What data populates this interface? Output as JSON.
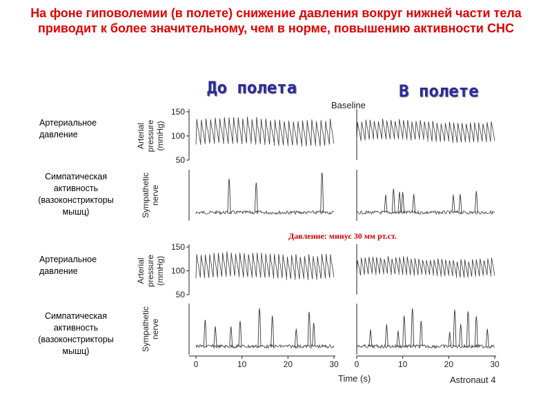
{
  "title": "На фоне гиповолемии (в полете) снижение давления вокруг нижней части тела приводит к более значительному, чем в норме, повышению активности СНС",
  "columns": {
    "before": "До полета",
    "during": "В полете"
  },
  "row_labels": {
    "pressure_top": "Артериальное давление",
    "sympathetic_top": "Симпатическая активность (вазоконстрикторы мышц)",
    "pressure_bottom": "Артериальное давление",
    "sympathetic_bottom": "Симпатическая активность (вазоконстрикторы мышц)"
  },
  "pressure_note": "Давление: минус 30 мм рт.ст.",
  "chart_data": {
    "type": "line",
    "condition_labels": [
      "Baseline",
      "Давление: минус 30 мм рт.ст."
    ],
    "subject": "Astronaut 4",
    "xlabel": "Time (s)",
    "x_ticks": [
      "0",
      "10",
      "20",
      "30"
    ],
    "xlim": [
      0,
      30
    ],
    "pressure_axis": {
      "label_line1": "Arterial",
      "label_line2": "pressure",
      "label_line3": "(mmHg)",
      "ticks": [
        "150",
        "100",
        "50"
      ],
      "ylim": [
        50,
        150
      ]
    },
    "nerve_axis": {
      "label_line1": "Sympathetic",
      "label_line2": "nerve"
    },
    "panels": [
      {
        "row": "baseline",
        "col": "preflight",
        "pressure": {
          "beats": 30,
          "systolic": 135,
          "diastolic": 82
        },
        "nerve_bursts_s": [
          7.2,
          13.1,
          27.4
        ]
      },
      {
        "row": "baseline",
        "col": "inflight",
        "pressure": {
          "beats": 33,
          "systolic": 130,
          "diastolic": 90
        },
        "nerve_bursts_s": [
          6.3,
          8.0,
          9.3,
          10.0,
          12.4,
          21.0,
          22.5,
          26.0
        ]
      },
      {
        "row": "lbnp",
        "col": "preflight",
        "pressure": {
          "beats": 32,
          "systolic": 135,
          "diastolic": 85
        },
        "nerve_bursts_s": [
          2.0,
          4.2,
          7.6,
          9.6,
          13.8,
          16.6,
          21.8,
          24.6,
          25.6
        ]
      },
      {
        "row": "lbnp",
        "col": "inflight",
        "pressure": {
          "beats": 36,
          "systolic": 125,
          "diastolic": 90
        },
        "nerve_bursts_s": [
          3.0,
          6.5,
          9.0,
          10.3,
          12.1,
          14.0,
          20.2,
          21.3,
          22.6,
          24.2,
          26.0,
          28.4
        ]
      }
    ]
  }
}
